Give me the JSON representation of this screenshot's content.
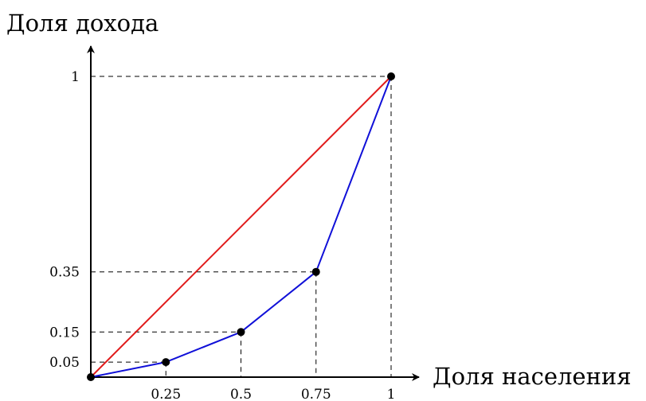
{
  "chart_data": {
    "type": "line",
    "xlabel": "Доля населения",
    "ylabel": "Доля дохода",
    "xlim": [
      0,
      1
    ],
    "ylim": [
      0,
      1
    ],
    "x_ticks": [
      {
        "value": 0.25,
        "label": "0.25"
      },
      {
        "value": 0.5,
        "label": "0.5"
      },
      {
        "value": 0.75,
        "label": "0.75"
      },
      {
        "value": 1,
        "label": "1"
      }
    ],
    "y_ticks": [
      {
        "value": 0.05,
        "label": "0.05"
      },
      {
        "value": 0.15,
        "label": "0.15"
      },
      {
        "value": 0.35,
        "label": "0.35"
      },
      {
        "value": 1,
        "label": "1"
      }
    ],
    "grid": false,
    "series": [
      {
        "color": "#e11b1b",
        "x": [
          0,
          1
        ],
        "y": [
          0,
          1
        ],
        "markers": false
      },
      {
        "color": "#1010d8",
        "x": [
          0,
          0.25,
          0.5,
          0.75,
          1
        ],
        "y": [
          0,
          0.05,
          0.15,
          0.35,
          1
        ],
        "markers": true
      }
    ],
    "guide_lines": "dashed"
  }
}
